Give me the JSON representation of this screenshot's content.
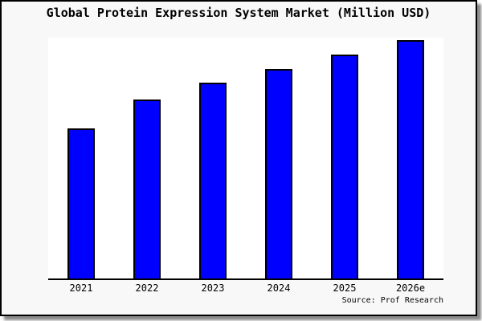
{
  "chart_data": {
    "type": "bar",
    "title": "Global Protein Expression System Market (Million USD)",
    "categories": [
      "2021",
      "2022",
      "2023",
      "2024",
      "2025",
      "2026e"
    ],
    "values": [
      63,
      75,
      82,
      88,
      94,
      100
    ],
    "values_note": "no y-axis or value labels shown; values are relative bar heights normalized to 2026e = 100",
    "xlabel": "",
    "ylabel": "",
    "ylim": [
      0,
      101
    ],
    "grid": false,
    "legend": false,
    "source": "Source: Prof Research",
    "colors": {
      "bar_fill": "#0000ff",
      "bar_border": "#000000",
      "figure_background": "#f8f8f8",
      "plot_background": "#ffffff",
      "axis": "#000000",
      "text": "#000000"
    }
  }
}
